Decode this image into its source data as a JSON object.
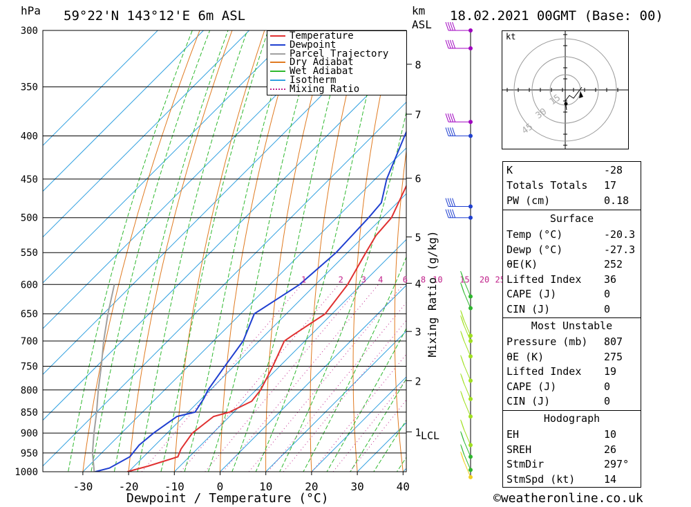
{
  "header": {
    "location": "59°22'N 143°12'E 6m ASL",
    "datetime": "18.02.2021 00GMT (Base: 00)",
    "pressure_unit": "hPa",
    "height_unit_1": "km",
    "height_unit_2": "ASL"
  },
  "footer": {
    "xlabel": "Dewpoint / Temperature (°C)",
    "credit": "©weatheronline.co.uk"
  },
  "chart_data": {
    "type": "skew-t",
    "xlabel": "Dewpoint / Temperature (°C)",
    "ylabel": "hPa",
    "right_label": "Mixing Ratio (g/kg)",
    "xlim": [
      -40,
      40
    ],
    "ylim": [
      1000,
      300
    ],
    "pressure_ticks": [
      300,
      350,
      400,
      450,
      500,
      550,
      600,
      650,
      700,
      750,
      800,
      850,
      900,
      950,
      1000
    ],
    "temp_ticks": [
      -30,
      -20,
      -10,
      0,
      10,
      20,
      30,
      40
    ],
    "km_ticks": [
      {
        "p": 329,
        "label": "8"
      },
      {
        "p": 377,
        "label": "7"
      },
      {
        "p": 449,
        "label": "6"
      },
      {
        "p": 527,
        "label": "5"
      },
      {
        "p": 598,
        "label": "4"
      },
      {
        "p": 682,
        "label": "3"
      },
      {
        "p": 780,
        "label": "2"
      },
      {
        "p": 897,
        "label": "1"
      }
    ],
    "lcl_label": "LCL",
    "mixing_ratio_labels": [
      "1",
      "2",
      "3",
      "4",
      "6",
      "8",
      "10",
      "15",
      "20",
      "25"
    ],
    "mixing_ratio_values": [
      1,
      2,
      3,
      4,
      6,
      8,
      10,
      15,
      20,
      25
    ],
    "legend": [
      "Temperature",
      "Dewpoint",
      "Parcel Trajectory",
      "Dry Adiabat",
      "Wet Adiabat",
      "Isotherm",
      "Mixing Ratio"
    ],
    "colors": {
      "temperature": "#e03030",
      "dewpoint": "#1f3fd0",
      "parcel": "#a0a0a0",
      "dry_adiabat": "#e07a20",
      "wet_adiabat": "#2eb82e",
      "isotherm": "#30a0e0",
      "mixing_ratio": "#c0208a"
    },
    "temperature": [
      {
        "p": 1000,
        "t": -20.3
      },
      {
        "p": 985,
        "t": -17
      },
      {
        "p": 960,
        "t": -12.5
      },
      {
        "p": 940,
        "t": -13.5
      },
      {
        "p": 900,
        "t": -14.5
      },
      {
        "p": 860,
        "t": -13.5
      },
      {
        "p": 850,
        "t": -11
      },
      {
        "p": 825,
        "t": -8.5
      },
      {
        "p": 800,
        "t": -9
      },
      {
        "p": 750,
        "t": -11.5
      },
      {
        "p": 700,
        "t": -14.5
      },
      {
        "p": 690,
        "t": -14
      },
      {
        "p": 650,
        "t": -11.5
      },
      {
        "p": 600,
        "t": -13
      },
      {
        "p": 550,
        "t": -16
      },
      {
        "p": 525,
        "t": -17.5
      },
      {
        "p": 500,
        "t": -18
      },
      {
        "p": 450,
        "t": -22.5
      },
      {
        "p": 400,
        "t": -28
      },
      {
        "p": 350,
        "t": -34.5
      },
      {
        "p": 320,
        "t": -36.5
      },
      {
        "p": 300,
        "t": -40
      }
    ],
    "dewpoint": [
      {
        "p": 1000,
        "t": -27.3
      },
      {
        "p": 990,
        "t": -25
      },
      {
        "p": 960,
        "t": -23
      },
      {
        "p": 930,
        "t": -23.5
      },
      {
        "p": 900,
        "t": -23
      },
      {
        "p": 860,
        "t": -21.5
      },
      {
        "p": 850,
        "t": -18.5
      },
      {
        "p": 820,
        "t": -19.5
      },
      {
        "p": 800,
        "t": -20.5
      },
      {
        "p": 750,
        "t": -22
      },
      {
        "p": 700,
        "t": -23.5
      },
      {
        "p": 650,
        "t": -27
      },
      {
        "p": 600,
        "t": -23.5
      },
      {
        "p": 550,
        "t": -22.5
      },
      {
        "p": 500,
        "t": -23
      },
      {
        "p": 480,
        "t": -23.5
      },
      {
        "p": 450,
        "t": -27.5
      },
      {
        "p": 400,
        "t": -33
      },
      {
        "p": 350,
        "t": -39
      },
      {
        "p": 320,
        "t": -42
      },
      {
        "p": 300,
        "t": -45
      }
    ],
    "parcel": [
      {
        "p": 1000,
        "t": -27.5
      },
      {
        "p": 950,
        "t": -32
      },
      {
        "p": 900,
        "t": -36
      },
      {
        "p": 850,
        "t": -40
      },
      {
        "p": 800,
        "t": -44.5
      },
      {
        "p": 750,
        "t": -49
      },
      {
        "p": 700,
        "t": -54
      },
      {
        "p": 650,
        "t": -59
      },
      {
        "p": 600,
        "t": -64
      }
    ],
    "hodograph": {
      "unit": "kt",
      "ring_labels": [
        "15",
        "30",
        "45"
      ]
    },
    "indices": {
      "K": "-28",
      "Totals Totals": "17",
      "PW (cm)": "0.18"
    },
    "surface": {
      "title": "Surface",
      "rows": [
        {
          "k": "Temp (°C)",
          "v": "-20.3"
        },
        {
          "k": "Dewp (°C)",
          "v": "-27.3"
        },
        {
          "k": "θE(K)",
          "v": "252"
        },
        {
          "k": "Lifted Index",
          "v": "36"
        },
        {
          "k": "CAPE (J)",
          "v": "0"
        },
        {
          "k": "CIN (J)",
          "v": "0"
        }
      ]
    },
    "most_unstable": {
      "title": "Most Unstable",
      "rows": [
        {
          "k": "Pressure (mb)",
          "v": "807"
        },
        {
          "k": "θE (K)",
          "v": "275"
        },
        {
          "k": "Lifted Index",
          "v": "19"
        },
        {
          "k": "CAPE (J)",
          "v": "0"
        },
        {
          "k": "CIN (J)",
          "v": "0"
        }
      ]
    },
    "hodograph_table": {
      "title": "Hodograph",
      "rows": [
        {
          "k": "EH",
          "v": "10"
        },
        {
          "k": "SREH",
          "v": "26"
        },
        {
          "k": "StmDir",
          "v": "297°"
        },
        {
          "k": "StmSpd (kt)",
          "v": "14"
        }
      ]
    }
  }
}
